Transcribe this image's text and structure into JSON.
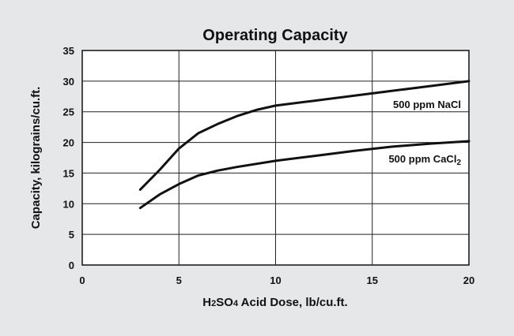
{
  "chart_data": {
    "type": "line",
    "title": "Operating Capacity",
    "xlabel": {
      "pre": "H",
      "sub1": "2",
      "mid": "SO",
      "sub2": "4",
      "post": " Acid Dose, lb/cu.ft."
    },
    "ylabel": "Capacity, kilograins/cu.ft.",
    "xlim": [
      0,
      20
    ],
    "ylim": [
      0,
      35
    ],
    "xticks": [
      0,
      5,
      10,
      15,
      20
    ],
    "yticks": [
      0,
      5,
      10,
      15,
      20,
      25,
      30,
      35
    ],
    "grid": true,
    "series": [
      {
        "label": {
          "main": "500 ppm NaCl",
          "sub": ""
        },
        "x": [
          3,
          4,
          5,
          6,
          7,
          8,
          9,
          10,
          12,
          14,
          16,
          18,
          20
        ],
        "y": [
          12.3,
          15.5,
          19,
          21.5,
          23,
          24.3,
          25.3,
          26,
          26.8,
          27.6,
          28.4,
          29.2,
          30
        ]
      },
      {
        "label": {
          "main": "500 ppm CaCl",
          "sub": "2"
        },
        "x": [
          3,
          4,
          5,
          6,
          7,
          8,
          10,
          12,
          14,
          16,
          18,
          20
        ],
        "y": [
          9.3,
          11.5,
          13.2,
          14.6,
          15.4,
          16,
          17,
          17.8,
          18.6,
          19.3,
          19.8,
          20.2
        ]
      }
    ]
  }
}
